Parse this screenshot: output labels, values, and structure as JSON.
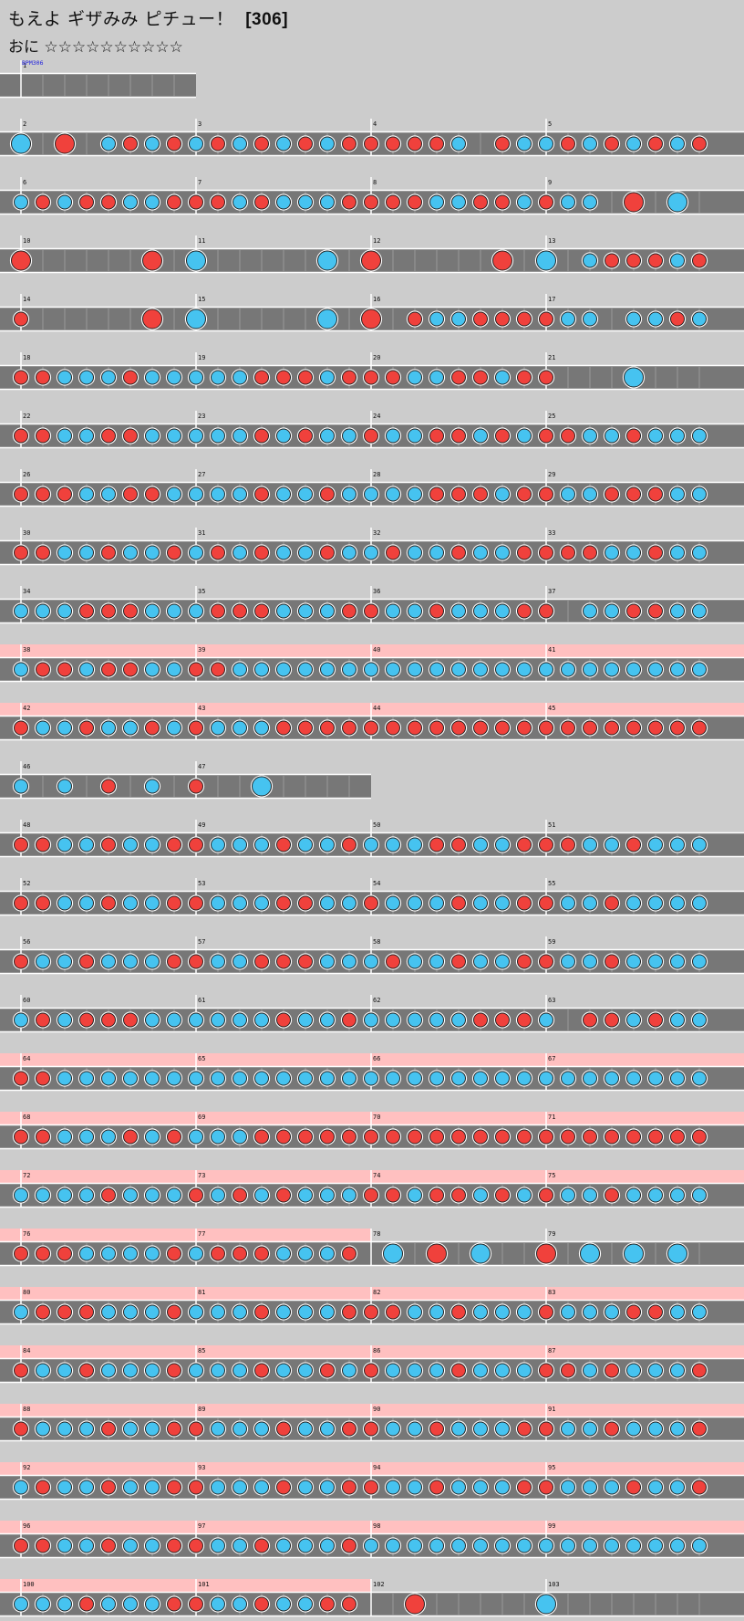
{
  "header": {
    "title": "もえよ ギザみみ ピチュー！",
    "level": "[306]",
    "course": "おに",
    "stars": "☆☆☆☆☆☆☆☆☆☆"
  },
  "bpm_label": "BPM306",
  "colors": {
    "background": "#cccccc",
    "lane": "#777777",
    "gogo": "#ffc0c0",
    "don": "#f0413c",
    "ka": "#46c3f0",
    "bpm_text": "#2222dd"
  },
  "notes_legend": {
    "r": "don (red)",
    "b": "ka (blue)",
    "R": "big don",
    "B": "big ka"
  },
  "rows": [
    {
      "measures": [
        1
      ],
      "gogo": [
        false
      ],
      "charts": [
        ""
      ]
    },
    {
      "measures": [
        2,
        3,
        4,
        5
      ],
      "gogo": [
        false,
        false,
        false,
        false
      ],
      "charts": [
        "B.R.brbr",
        "brbrbrbr",
        "rrrrb.rb",
        "brbrbrbr"
      ]
    },
    {
      "measures": [
        6,
        7,
        8,
        9
      ],
      "gogo": [
        false,
        false,
        false,
        false
      ],
      "charts": [
        "brbrrbbr",
        "rrbrbbbr",
        "rrrbbrrb",
        "rbb.R.B."
      ]
    },
    {
      "measures": [
        10,
        11,
        12,
        13
      ],
      "gogo": [
        false,
        false,
        false,
        false
      ],
      "charts": [
        "R.....R.",
        "B.....B.",
        "R.....R.",
        "B.brrrbr"
      ]
    },
    {
      "measures": [
        14,
        15,
        16,
        17
      ],
      "gogo": [
        false,
        false,
        false,
        false
      ],
      "charts": [
        "r.....R.",
        "B.....B.",
        "R.rbbrrr",
        "rbb.bbrb"
      ]
    },
    {
      "measures": [
        18,
        19,
        20,
        21
      ],
      "gogo": [
        false,
        false,
        false,
        false
      ],
      "charts": [
        "rrbbbrbb",
        "bbbrrrbr",
        "rrbbrrbr",
        "r...B..."
      ]
    },
    {
      "measures": [
        22,
        23,
        24,
        25
      ],
      "gogo": [
        false,
        false,
        false,
        false
      ],
      "charts": [
        "rrbbrrbb",
        "bbbrbrbb",
        "rbbrrbrb",
        "rrbbrbbb"
      ]
    },
    {
      "measures": [
        26,
        27,
        28,
        29
      ],
      "gogo": [
        false,
        false,
        false,
        false
      ],
      "charts": [
        "rrrbbrrb",
        "bbbrbbrb",
        "bbbrrrbr",
        "rbbrrrbb"
      ]
    },
    {
      "measures": [
        30,
        31,
        32,
        33
      ],
      "gogo": [
        false,
        false,
        false,
        false
      ],
      "charts": [
        "rrbbrbbr",
        "brbrbbrb",
        "brbbrbbr",
        "rrrbbrbb"
      ]
    },
    {
      "measures": [
        34,
        35,
        36,
        37
      ],
      "gogo": [
        false,
        false,
        false,
        false
      ],
      "charts": [
        "bbbrrrbb",
        "brrrbbbr",
        "rbbrbbbr",
        "r.bbrrbb"
      ]
    },
    {
      "measures": [
        38,
        39,
        40,
        41
      ],
      "gogo": [
        true,
        true,
        true,
        true
      ],
      "charts": [
        "brrbrrbb",
        "rrbbbbbb",
        "bbbbbbbb",
        "bbbbbbbb"
      ]
    },
    {
      "measures": [
        42,
        43,
        44,
        45
      ],
      "gogo": [
        true,
        true,
        true,
        true
      ],
      "charts": [
        "rbbrbbrb",
        "rbbbrrrr",
        "rrrrrrrr",
        "rrrrrrrr"
      ]
    },
    {
      "measures": [
        46,
        47
      ],
      "gogo": [
        false,
        false
      ],
      "charts": [
        "b.b.r.b.",
        "r..B...."
      ]
    },
    {
      "measures": [
        48,
        49,
        50,
        51
      ],
      "gogo": [
        false,
        false,
        false,
        false
      ],
      "charts": [
        "rrbbrbbr",
        "rbbbrbbr",
        "bbbrrbbr",
        "rrbbrbbb"
      ]
    },
    {
      "measures": [
        52,
        53,
        54,
        55
      ],
      "gogo": [
        false,
        false,
        false,
        false
      ],
      "charts": [
        "rrbbrbbr",
        "rbbbrrbb",
        "rbbbrbbr",
        "rbbrbbbb"
      ]
    },
    {
      "measures": [
        56,
        57,
        58,
        59
      ],
      "gogo": [
        false,
        false,
        false,
        false
      ],
      "charts": [
        "rbbrbbbr",
        "rbbrrrbb",
        "brbbrbbr",
        "rbbrbbbb"
      ]
    },
    {
      "measures": [
        60,
        61,
        62,
        63
      ],
      "gogo": [
        false,
        false,
        false,
        false
      ],
      "charts": [
        "brbrrrbb",
        "bbbbrbbr",
        "bbbbbrrr",
        "b.rrbrbb"
      ]
    },
    {
      "measures": [
        64,
        65,
        66,
        67
      ],
      "gogo": [
        true,
        true,
        true,
        true
      ],
      "charts": [
        "rrbbbbbb",
        "bbbbbbbb",
        "bbbbbbbb",
        "bbbbbbbb"
      ]
    },
    {
      "measures": [
        68,
        69,
        70,
        71
      ],
      "gogo": [
        true,
        true,
        true,
        true
      ],
      "charts": [
        "rrbbbrbr",
        "bbbrrrrr",
        "rrrrrrrr",
        "rrrrrrrr"
      ]
    },
    {
      "measures": [
        72,
        73,
        74,
        75
      ],
      "gogo": [
        true,
        true,
        true,
        true
      ],
      "charts": [
        "bbbbrbbb",
        "rbrbrbbb",
        "rrbrrbrb",
        "rbbrbbbb"
      ]
    },
    {
      "measures": [
        76,
        77,
        78,
        79
      ],
      "gogo": [
        true,
        true,
        false,
        false
      ],
      "charts": [
        "rrrbbbbr",
        "brrrbbbr",
        ".B.R.B..",
        "R.B.B.B."
      ]
    },
    {
      "measures": [
        80,
        81,
        82,
        83
      ],
      "gogo": [
        true,
        true,
        true,
        true
      ],
      "charts": [
        "brrrbbbr",
        "bbbrbbbr",
        "rrbbrbbb",
        "rbbbrrbb"
      ]
    },
    {
      "measures": [
        84,
        85,
        86,
        87
      ],
      "gogo": [
        true,
        true,
        true,
        true
      ],
      "charts": [
        "rbbrbbbr",
        "bbbrbbrb",
        "rbbbrbbb",
        "rrbrbbbr"
      ]
    },
    {
      "measures": [
        88,
        89,
        90,
        91
      ],
      "gogo": [
        true,
        true,
        true,
        true
      ],
      "charts": [
        "rbbbrbbr",
        "rbbbrbbr",
        "rbbrbbbr",
        "rbbrbbbr"
      ]
    },
    {
      "measures": [
        92,
        93,
        94,
        95
      ],
      "gogo": [
        true,
        true,
        true,
        true
      ],
      "charts": [
        "brbbrbbr",
        "rbbbrbbr",
        "rbbrbbbr",
        "rbbbrbbr"
      ]
    },
    {
      "measures": [
        96,
        97,
        98,
        99
      ],
      "gogo": [
        true,
        true,
        true,
        true
      ],
      "charts": [
        "rrbbrbbr",
        "rbbrbbbr",
        "bbbbbbbb",
        "bbbbbbbb"
      ]
    },
    {
      "measures": [
        100,
        101,
        102,
        103
      ],
      "gogo": [
        true,
        true,
        false,
        false
      ],
      "charts": [
        "bbbrbbbr",
        "rbbrbbrr",
        "..R.....",
        "B......."
      ]
    }
  ]
}
